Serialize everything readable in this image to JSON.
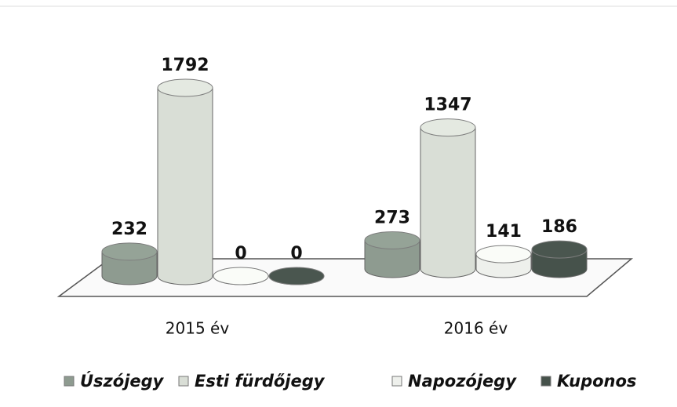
{
  "chart_data": {
    "type": "bar3d",
    "categories": [
      "2015 év",
      "2016 év"
    ],
    "series": [
      {
        "name": "Úszójegy",
        "color": "#8e9b90",
        "values": [
          232,
          273
        ]
      },
      {
        "name": "Esti fürdőjegy",
        "color": "#d9ded6",
        "values": [
          1792,
          1347
        ]
      },
      {
        "name": "Napozójegy",
        "color": "#eef0ec",
        "values": [
          0,
          141
        ]
      },
      {
        "name": "Kuponos",
        "color": "#46524b",
        "values": [
          0,
          186
        ]
      }
    ],
    "legend": "bottom"
  }
}
